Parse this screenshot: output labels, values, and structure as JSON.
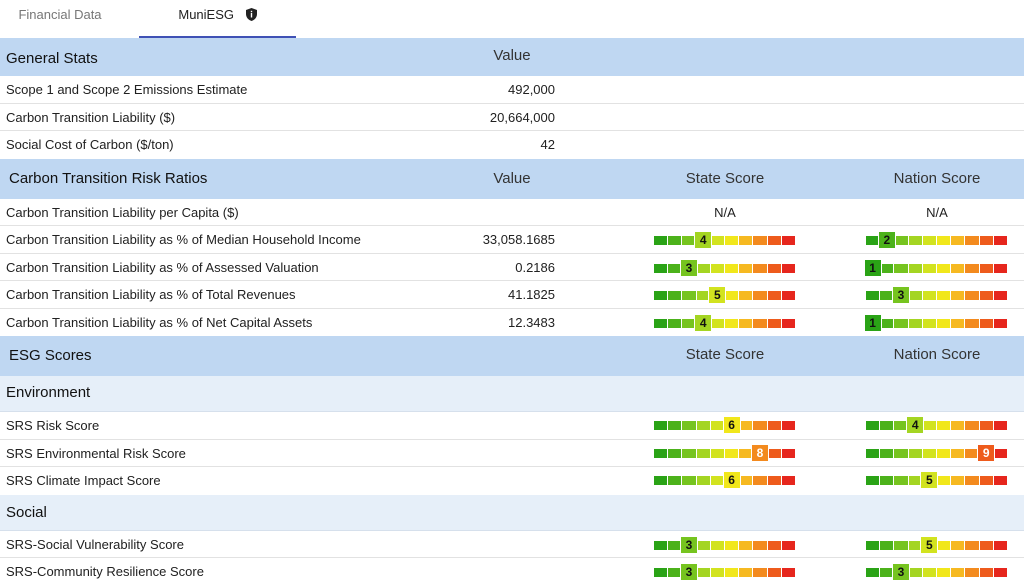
{
  "tabs": [
    {
      "label": "Financial Data",
      "active": false
    },
    {
      "label": "MuniESG",
      "active": true,
      "icon": "shield-info-icon"
    }
  ],
  "headers": {
    "value": "Value",
    "state_score": "State Score",
    "nation_score": "Nation Score"
  },
  "scale": {
    "min": 1,
    "max": 10,
    "colors": [
      "#2aa316",
      "#4cb21b",
      "#76c41f",
      "#a4d522",
      "#d2e31f",
      "#f1e71b",
      "#f6b921",
      "#f38a1e",
      "#ee5b1c",
      "#e6261d"
    ]
  },
  "general_stats": {
    "title": "General Stats",
    "rows": [
      {
        "label": "Scope 1 and Scope 2 Emissions Estimate",
        "value": "492,000"
      },
      {
        "label": "Carbon Transition Liability ($)",
        "value": "20,664,000"
      },
      {
        "label": "Social Cost of Carbon ($/ton)",
        "value": "42"
      }
    ]
  },
  "risk_ratios": {
    "title": "Carbon Transition Risk Ratios",
    "rows": [
      {
        "label": "Carbon Transition Liability per Capita ($)",
        "value": "",
        "state": "N/A",
        "nation": "N/A"
      },
      {
        "label": "Carbon Transition Liability as % of Median Household Income",
        "value": "33,058.1685",
        "state": 4,
        "nation": 2
      },
      {
        "label": "Carbon Transition Liability as % of Assessed Valuation",
        "value": "0.2186",
        "state": 3,
        "nation": 1
      },
      {
        "label": "Carbon Transition Liability as % of Total Revenues",
        "value": "41.1825",
        "state": 5,
        "nation": 3
      },
      {
        "label": "Carbon Transition Liability as % of Net Capital Assets",
        "value": "12.3483",
        "state": 4,
        "nation": 1
      }
    ]
  },
  "esg_scores": {
    "title": "ESG Scores",
    "environment": {
      "title": "Environment",
      "rows": [
        {
          "label": "SRS Risk Score",
          "state": 6,
          "nation": 4
        },
        {
          "label": "SRS Environmental Risk Score",
          "state": 8,
          "nation": 9
        },
        {
          "label": "SRS Climate Impact Score",
          "state": 6,
          "nation": 5
        }
      ]
    },
    "social": {
      "title": "Social",
      "rows": [
        {
          "label": "SRS-Social Vulnerability Score",
          "state": 3,
          "nation": 5
        },
        {
          "label": "SRS-Community Resilience Score",
          "state": 3,
          "nation": 3
        }
      ]
    }
  }
}
